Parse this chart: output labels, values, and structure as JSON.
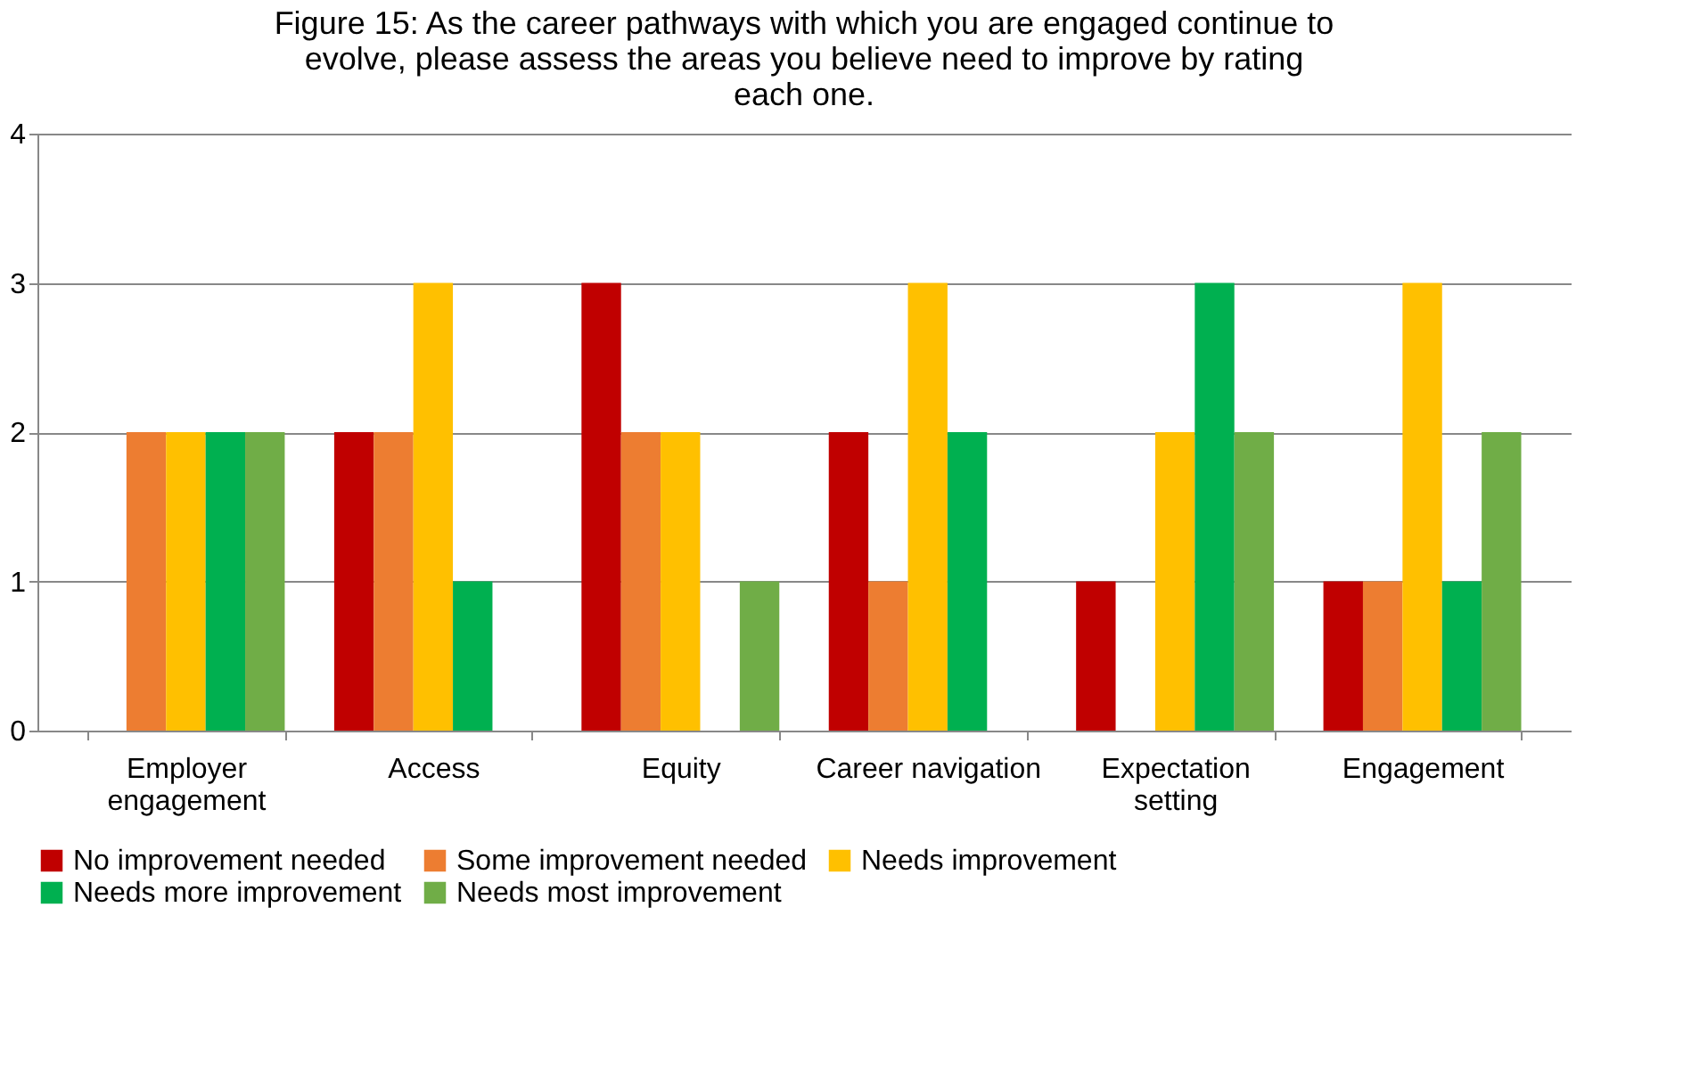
{
  "chart_data": {
    "type": "bar",
    "title": "Figure 15: As the career pathways with which you are engaged continue to evolve, please assess the areas you believe need to improve by rating each one.",
    "categories": [
      "Employer engagement",
      "Access",
      "Equity",
      "Career navigation",
      "Expectation setting",
      "Engagement"
    ],
    "series": [
      {
        "name": "No improvement needed",
        "color": "#c00000",
        "values": [
          0,
          2,
          3,
          2,
          1,
          1
        ]
      },
      {
        "name": "Some improvement needed",
        "color": "#ed7d31",
        "values": [
          2,
          2,
          2,
          1,
          0,
          1
        ]
      },
      {
        "name": "Needs improvement",
        "color": "#ffc000",
        "values": [
          2,
          3,
          2,
          3,
          2,
          3
        ]
      },
      {
        "name": "Needs more improvement",
        "color": "#00b050",
        "values": [
          2,
          1,
          0,
          2,
          3,
          1
        ]
      },
      {
        "name": "Needs most improvement",
        "color": "#70ad47",
        "values": [
          2,
          0,
          1,
          0,
          2,
          2
        ]
      }
    ],
    "ylim": [
      0,
      4
    ],
    "yticks": [
      0,
      1,
      2,
      3,
      4
    ],
    "grid": "y",
    "legend": "bottom"
  }
}
